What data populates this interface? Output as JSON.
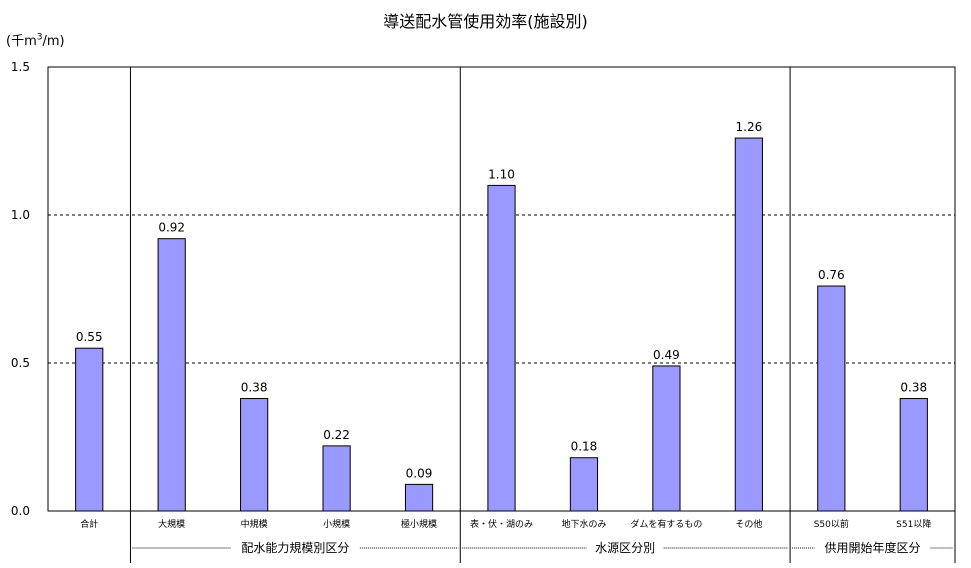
{
  "chart_data": {
    "type": "bar",
    "title": "導送配水管使用効率(施設別)",
    "unit_label_prefix": "(千m",
    "unit_label_sup": "3",
    "unit_label_suffix": "/m)",
    "ylim": [
      0,
      1.5
    ],
    "yticks": [
      "0.0",
      "0.5",
      "1.0",
      "1.5"
    ],
    "grid": "dashed at 0.5 and 1.0",
    "bar_color": "#9999ff",
    "categories": [
      "合計",
      "大規模",
      "中規模",
      "小規模",
      "極小規模",
      "表・伏・湖のみ",
      "地下水のみ",
      "ダムを有するもの",
      "その他",
      "S50以前",
      "S51以降"
    ],
    "values": [
      0.55,
      0.92,
      0.38,
      0.22,
      0.09,
      1.1,
      0.18,
      0.49,
      1.26,
      0.76,
      0.38
    ],
    "value_labels": [
      "0.55",
      "0.92",
      "0.38",
      "0.22",
      "0.09",
      "1.10",
      "0.18",
      "0.49",
      "1.26",
      "0.76",
      "0.38"
    ],
    "groups": [
      {
        "label": "配水能力規模別区分",
        "start": 1,
        "end": 4
      },
      {
        "label": "水源区分別",
        "start": 5,
        "end": 8
      },
      {
        "label": "供用開始年度区分",
        "start": 9,
        "end": 10
      }
    ]
  }
}
